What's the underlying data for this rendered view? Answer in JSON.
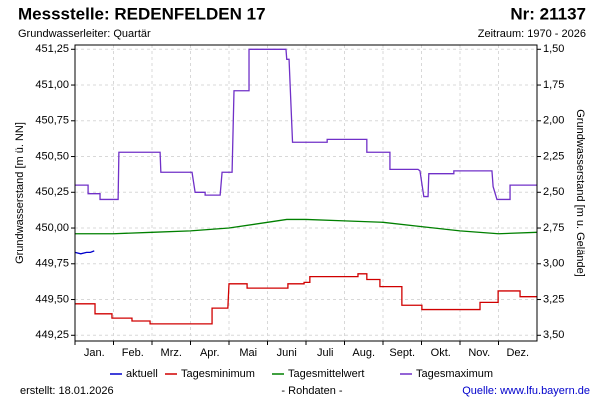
{
  "chart_data": {
    "type": "line",
    "title": "Messstelle: REDENFELDEN 17",
    "number": "Nr: 21137",
    "subtitle": "Grundwasserleiter: Quartär",
    "period": "Zeitraum: 1970 - 2026",
    "ylabel": "Grundwasserstand [m ü. NN]",
    "y2label": "Grundwasserstand [m u. Gelände]",
    "created": "erstellt:  18.01.2026",
    "note": "- Rohdaten -",
    "source": "Quelle: www.lfu.bayern.de",
    "categories": [
      "Jan.",
      "Feb.",
      "Mrz.",
      "Apr.",
      "Mai",
      "Juni",
      "Juli",
      "Aug.",
      "Sept.",
      "Okt.",
      "Nov.",
      "Dez."
    ],
    "xlim": [
      0,
      12
    ],
    "ylim": [
      449.21,
      451.28
    ],
    "yticks": [
      {
        "value": 449.25,
        "label": "449,25"
      },
      {
        "value": 449.5,
        "label": "449,50"
      },
      {
        "value": 449.75,
        "label": "449,75"
      },
      {
        "value": 450,
        "label": "450,00"
      },
      {
        "value": 450.25,
        "label": "450,25"
      },
      {
        "value": 450.5,
        "label": "450,50"
      },
      {
        "value": 450.75,
        "label": "450,75"
      },
      {
        "value": 451,
        "label": "451,00"
      },
      {
        "value": 451.25,
        "label": "451,25"
      }
    ],
    "y2lim": [
      1.47,
      3.54
    ],
    "y2_inverted": true,
    "y2ticks": [
      {
        "value": 1.5,
        "label": "1,50"
      },
      {
        "value": 1.75,
        "label": "1,75"
      },
      {
        "value": 2,
        "label": "2,00"
      },
      {
        "value": 2.25,
        "label": "2,25"
      },
      {
        "value": 2.5,
        "label": "2,50"
      },
      {
        "value": 2.75,
        "label": "2,75"
      },
      {
        "value": 3,
        "label": "3,00"
      },
      {
        "value": 3.25,
        "label": "3,25"
      },
      {
        "value": 3.5,
        "label": "3,50"
      }
    ],
    "grid": true,
    "series": [
      {
        "name": "aktuell",
        "color": "#0000cc",
        "x": [
          0,
          0.15,
          0.3,
          0.4,
          0.5
        ],
        "values": [
          449.83,
          449.82,
          449.83,
          449.83,
          449.84
        ]
      },
      {
        "name": "Tagesminimum",
        "color": "#d00000",
        "x": [
          0,
          0.52,
          0.52,
          0.96,
          0.96,
          1.48,
          1.48,
          1.95,
          1.95,
          3.56,
          3.56,
          3.97,
          4.0,
          4.47,
          4.47,
          5.53,
          5.53,
          5.95,
          5.95,
          6.1,
          6.1,
          7.35,
          7.35,
          7.58,
          7.58,
          7.92,
          7.92,
          8.49,
          8.49,
          9.01,
          9.01,
          10.52,
          10.52,
          10.99,
          10.99,
          11.56,
          11.56,
          12
        ],
        "values": [
          449.47,
          449.47,
          449.4,
          449.4,
          449.37,
          449.37,
          449.35,
          449.35,
          449.33,
          449.33,
          449.44,
          449.44,
          449.61,
          449.61,
          449.58,
          449.58,
          449.61,
          449.61,
          449.62,
          449.62,
          449.66,
          449.66,
          449.68,
          449.68,
          449.64,
          449.64,
          449.59,
          449.59,
          449.46,
          449.46,
          449.43,
          449.43,
          449.48,
          449.48,
          449.56,
          449.56,
          449.52,
          449.52
        ]
      },
      {
        "name": "Tagesmittelwert",
        "color": "#008000",
        "x": [
          0,
          1,
          2,
          3,
          4,
          5,
          5.5,
          6,
          7,
          8,
          9,
          10,
          11,
          12
        ],
        "values": [
          449.96,
          449.96,
          449.97,
          449.98,
          450.0,
          450.04,
          450.06,
          450.06,
          450.05,
          450.04,
          450.01,
          449.98,
          449.96,
          449.97
        ]
      },
      {
        "name": "Tagesmaximum",
        "color": "#7030c8",
        "x": [
          0,
          0.34,
          0.34,
          0.65,
          0.65,
          1.12,
          1.14,
          2.21,
          2.23,
          3.04,
          3.12,
          3.38,
          3.38,
          3.77,
          3.82,
          4.08,
          4.13,
          4.52,
          4.52,
          5.48,
          5.5,
          5.56,
          5.65,
          6.55,
          6.55,
          7.58,
          7.58,
          8.18,
          8.18,
          8.91,
          8.96,
          9.06,
          9.17,
          9.19,
          9.84,
          9.84,
          10.83,
          10.86,
          10.96,
          11.3,
          11.3,
          12
        ],
        "values": [
          450.3,
          450.3,
          450.24,
          450.24,
          450.2,
          450.2,
          450.53,
          450.53,
          450.39,
          450.39,
          450.25,
          450.25,
          450.23,
          450.23,
          450.39,
          450.39,
          450.96,
          450.96,
          451.25,
          451.25,
          451.18,
          451.18,
          450.6,
          450.6,
          450.62,
          450.62,
          450.53,
          450.53,
          450.41,
          450.41,
          450.4,
          450.22,
          450.22,
          450.38,
          450.38,
          450.4,
          450.4,
          450.29,
          450.2,
          450.2,
          450.3,
          450.3
        ]
      }
    ]
  }
}
